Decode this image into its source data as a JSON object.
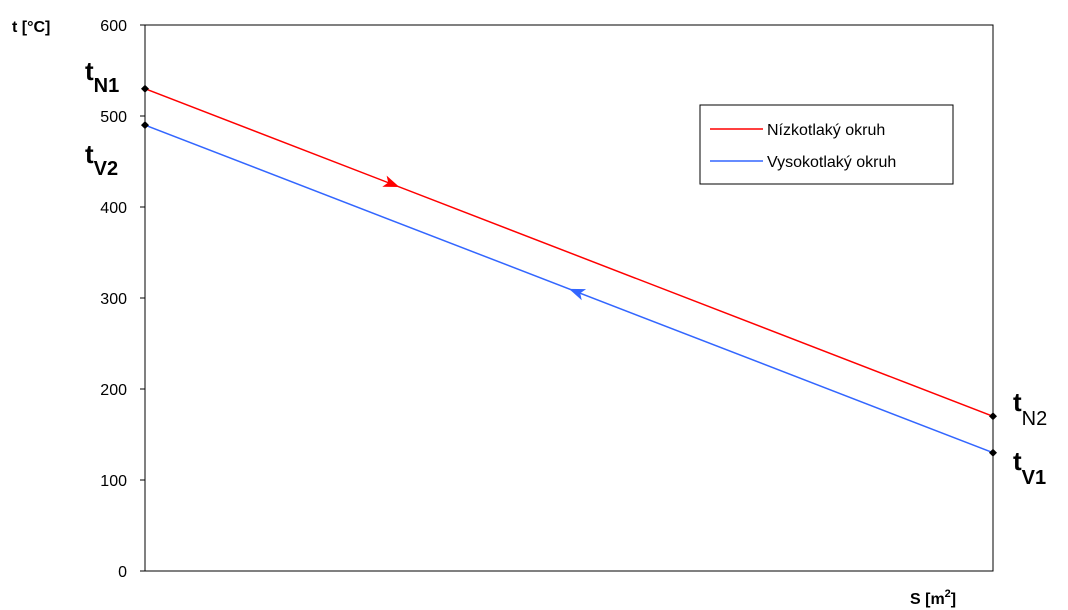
{
  "chart_data": {
    "type": "line",
    "ylabel": "t [°C]",
    "xlabel_main": "S [m",
    "xlabel_sup": "2",
    "xlabel_end": "]",
    "ylim": [
      0,
      600
    ],
    "yticks": [
      "0",
      "100",
      "200",
      "300",
      "400",
      "500",
      "600"
    ],
    "xlim": [
      0,
      1
    ],
    "grid": false,
    "legend_position": "top-right",
    "series": [
      {
        "name": "Nízkotlaký okruh",
        "color": "#ff0000",
        "points": [
          [
            0,
            530
          ],
          [
            1,
            170
          ]
        ],
        "arrow_at": 0.3,
        "arrow_direction": "forward"
      },
      {
        "name": "Vysokotlaký okruh",
        "color": "#3366ff",
        "points": [
          [
            0,
            490
          ],
          [
            1,
            130
          ]
        ],
        "arrow_at": 0.5,
        "arrow_direction": "backward"
      }
    ],
    "point_labels": [
      {
        "main": "t",
        "sub": "N1",
        "sub_bold": true
      },
      {
        "main": "t",
        "sub": "V2",
        "sub_bold": true
      },
      {
        "main": "t",
        "sub": "N2",
        "sub_bold": false
      },
      {
        "main": "t",
        "sub": "V1",
        "sub_bold": true
      }
    ]
  }
}
